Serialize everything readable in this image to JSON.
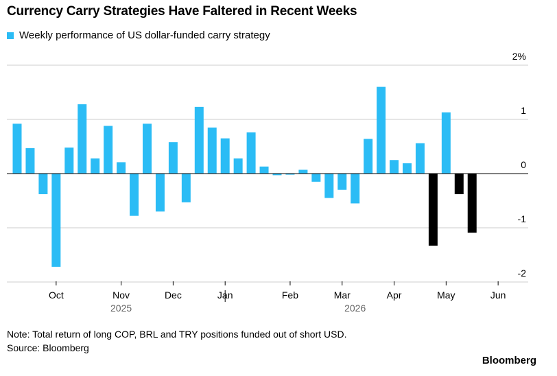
{
  "header": {
    "title": "Currency Carry Strategies Have Faltered in Recent Weeks"
  },
  "legend": {
    "label": "Weekly performance of US dollar-funded carry strategy",
    "color": "#2bbcf5"
  },
  "footer": {
    "note": "Note: Total return of long COP, BRL and TRY positions funded out of short USD.",
    "source": "Source: Bloomberg",
    "brand": "Bloomberg",
    "cutoff_text": "Source: Bloomberg"
  },
  "chart_data": {
    "type": "bar",
    "title": "Currency Carry Strategies Have Faltered in Recent Weeks",
    "series": [
      {
        "name": "Weekly performance of US dollar-funded carry strategy",
        "values": [
          0.92,
          0.47,
          -0.38,
          -1.72,
          0.48,
          1.28,
          0.28,
          0.88,
          0.21,
          -0.78,
          0.92,
          -0.7,
          0.58,
          -0.53,
          1.23,
          0.85,
          0.65,
          0.28,
          0.76,
          0.13,
          -0.03,
          -0.02,
          0.07,
          -0.15,
          -0.45,
          -0.3,
          -0.55,
          0.64,
          1.6,
          0.25,
          0.19,
          0.56,
          -1.33,
          1.13,
          -0.38,
          -1.09
        ]
      }
    ],
    "highlight_last_negatives": [
      32,
      34,
      35
    ],
    "colors": {
      "positive": "#2bbcf5",
      "highlight": "#000000"
    },
    "ylim": [
      -2,
      2
    ],
    "yticks": [
      "2%",
      "1",
      "0",
      "-1",
      "-2"
    ],
    "ytick_values": [
      2,
      1,
      0,
      -1,
      -2
    ],
    "xticks": [
      "Oct",
      "Nov",
      "Dec",
      "Jan",
      "Feb",
      "Mar",
      "Apr",
      "May",
      "Jun"
    ],
    "xtick_bar_index": [
      3,
      8,
      12,
      16,
      21,
      25,
      29,
      33,
      37
    ],
    "years": [
      "2025",
      "2026"
    ],
    "year_bar_index": [
      8,
      26
    ],
    "year_divider_bar_index": 16,
    "grid": true,
    "legend_position": "top-left",
    "xlabel": "",
    "ylabel": ""
  }
}
